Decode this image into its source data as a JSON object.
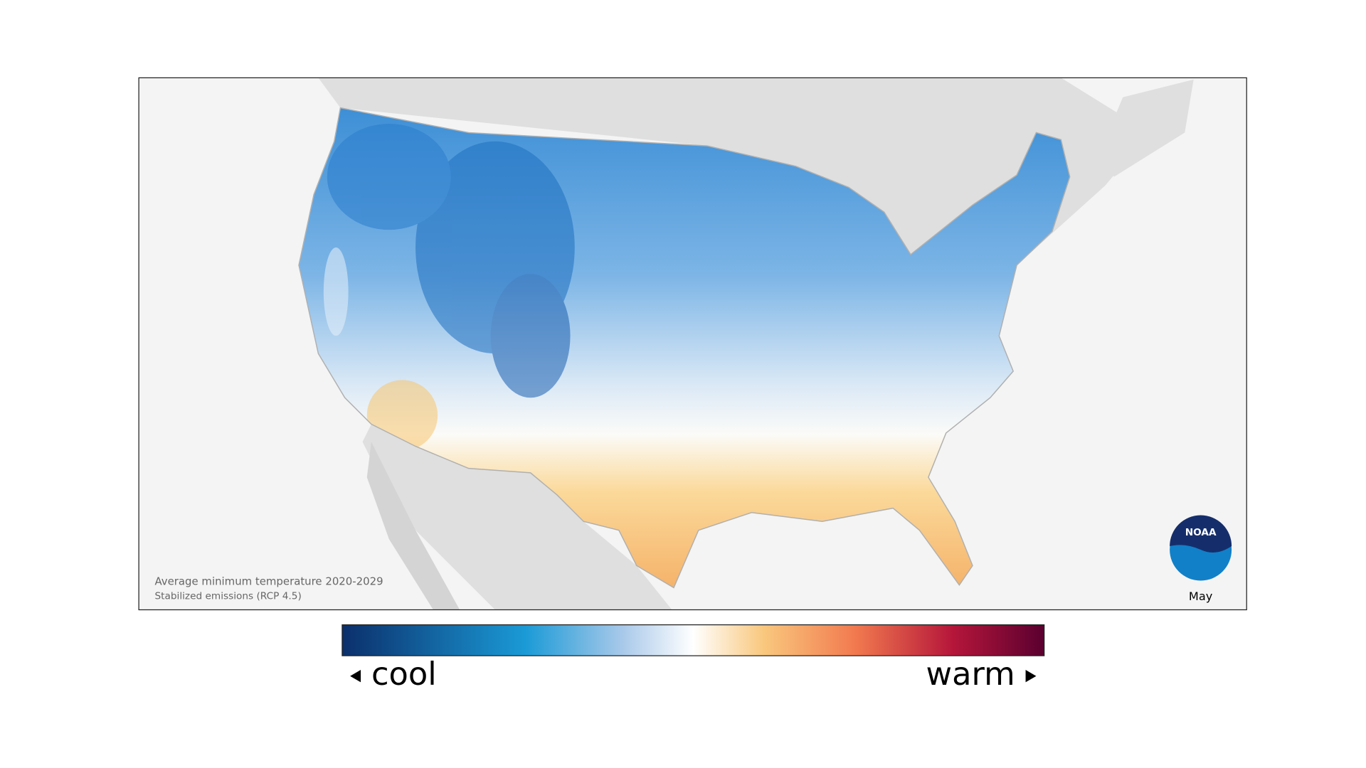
{
  "map": {
    "caption_line1": "Average minimum temperature 2020-2029",
    "caption_line2": "Stabilized emissions (RCP 4.5)",
    "month": "May",
    "logo_text": "NOAA"
  },
  "legend": {
    "low_label": "cool",
    "high_label": "warm"
  }
}
